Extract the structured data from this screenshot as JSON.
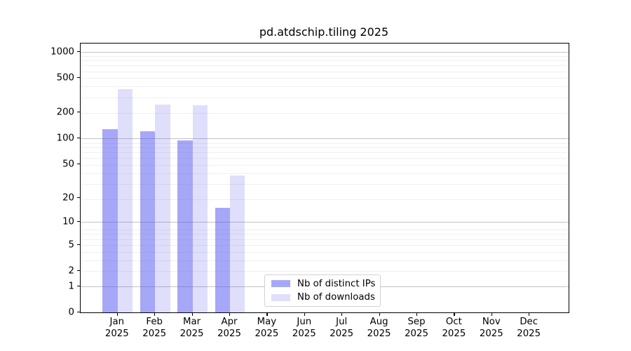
{
  "title": "pd.atdschip.tiling 2025",
  "colors": {
    "distinct_ips": "rgba(80,80,240,0.50)",
    "downloads": "rgba(80,80,240,0.18)",
    "grid_major": "#c3c3c3",
    "grid_minor": "#efefef",
    "axis": "#000000"
  },
  "legend": {
    "items": [
      {
        "label": "Nb of distinct IPs",
        "series_key": "distinct_ips"
      },
      {
        "label": "Nb of downloads",
        "series_key": "downloads"
      }
    ]
  },
  "chart_data": {
    "type": "bar",
    "title": "pd.atdschip.tiling 2025",
    "categories": [
      "Jan",
      "Feb",
      "Mar",
      "Apr",
      "May",
      "Jun",
      "Jul",
      "Aug",
      "Sep",
      "Oct",
      "Nov",
      "Dec"
    ],
    "x_year_suffix": "2025",
    "series": [
      {
        "name": "Nb of distinct IPs",
        "key": "distinct_ips",
        "values": [
          128,
          122,
          95,
          15,
          0,
          0,
          0,
          0,
          0,
          0,
          0,
          0
        ]
      },
      {
        "name": "Nb of downloads",
        "key": "downloads",
        "values": [
          370,
          248,
          245,
          37,
          0,
          0,
          0,
          0,
          0,
          0,
          0,
          0
        ]
      }
    ],
    "yscale": "log1p",
    "ylim": [
      0,
      1250
    ],
    "yticks": [
      0,
      1,
      2,
      5,
      10,
      20,
      50,
      100,
      200,
      500,
      1000
    ],
    "grid": "both",
    "grid_major_at": [
      1,
      10,
      100,
      1000
    ],
    "legend_position": "lower center",
    "xlabel": "",
    "ylabel": ""
  }
}
